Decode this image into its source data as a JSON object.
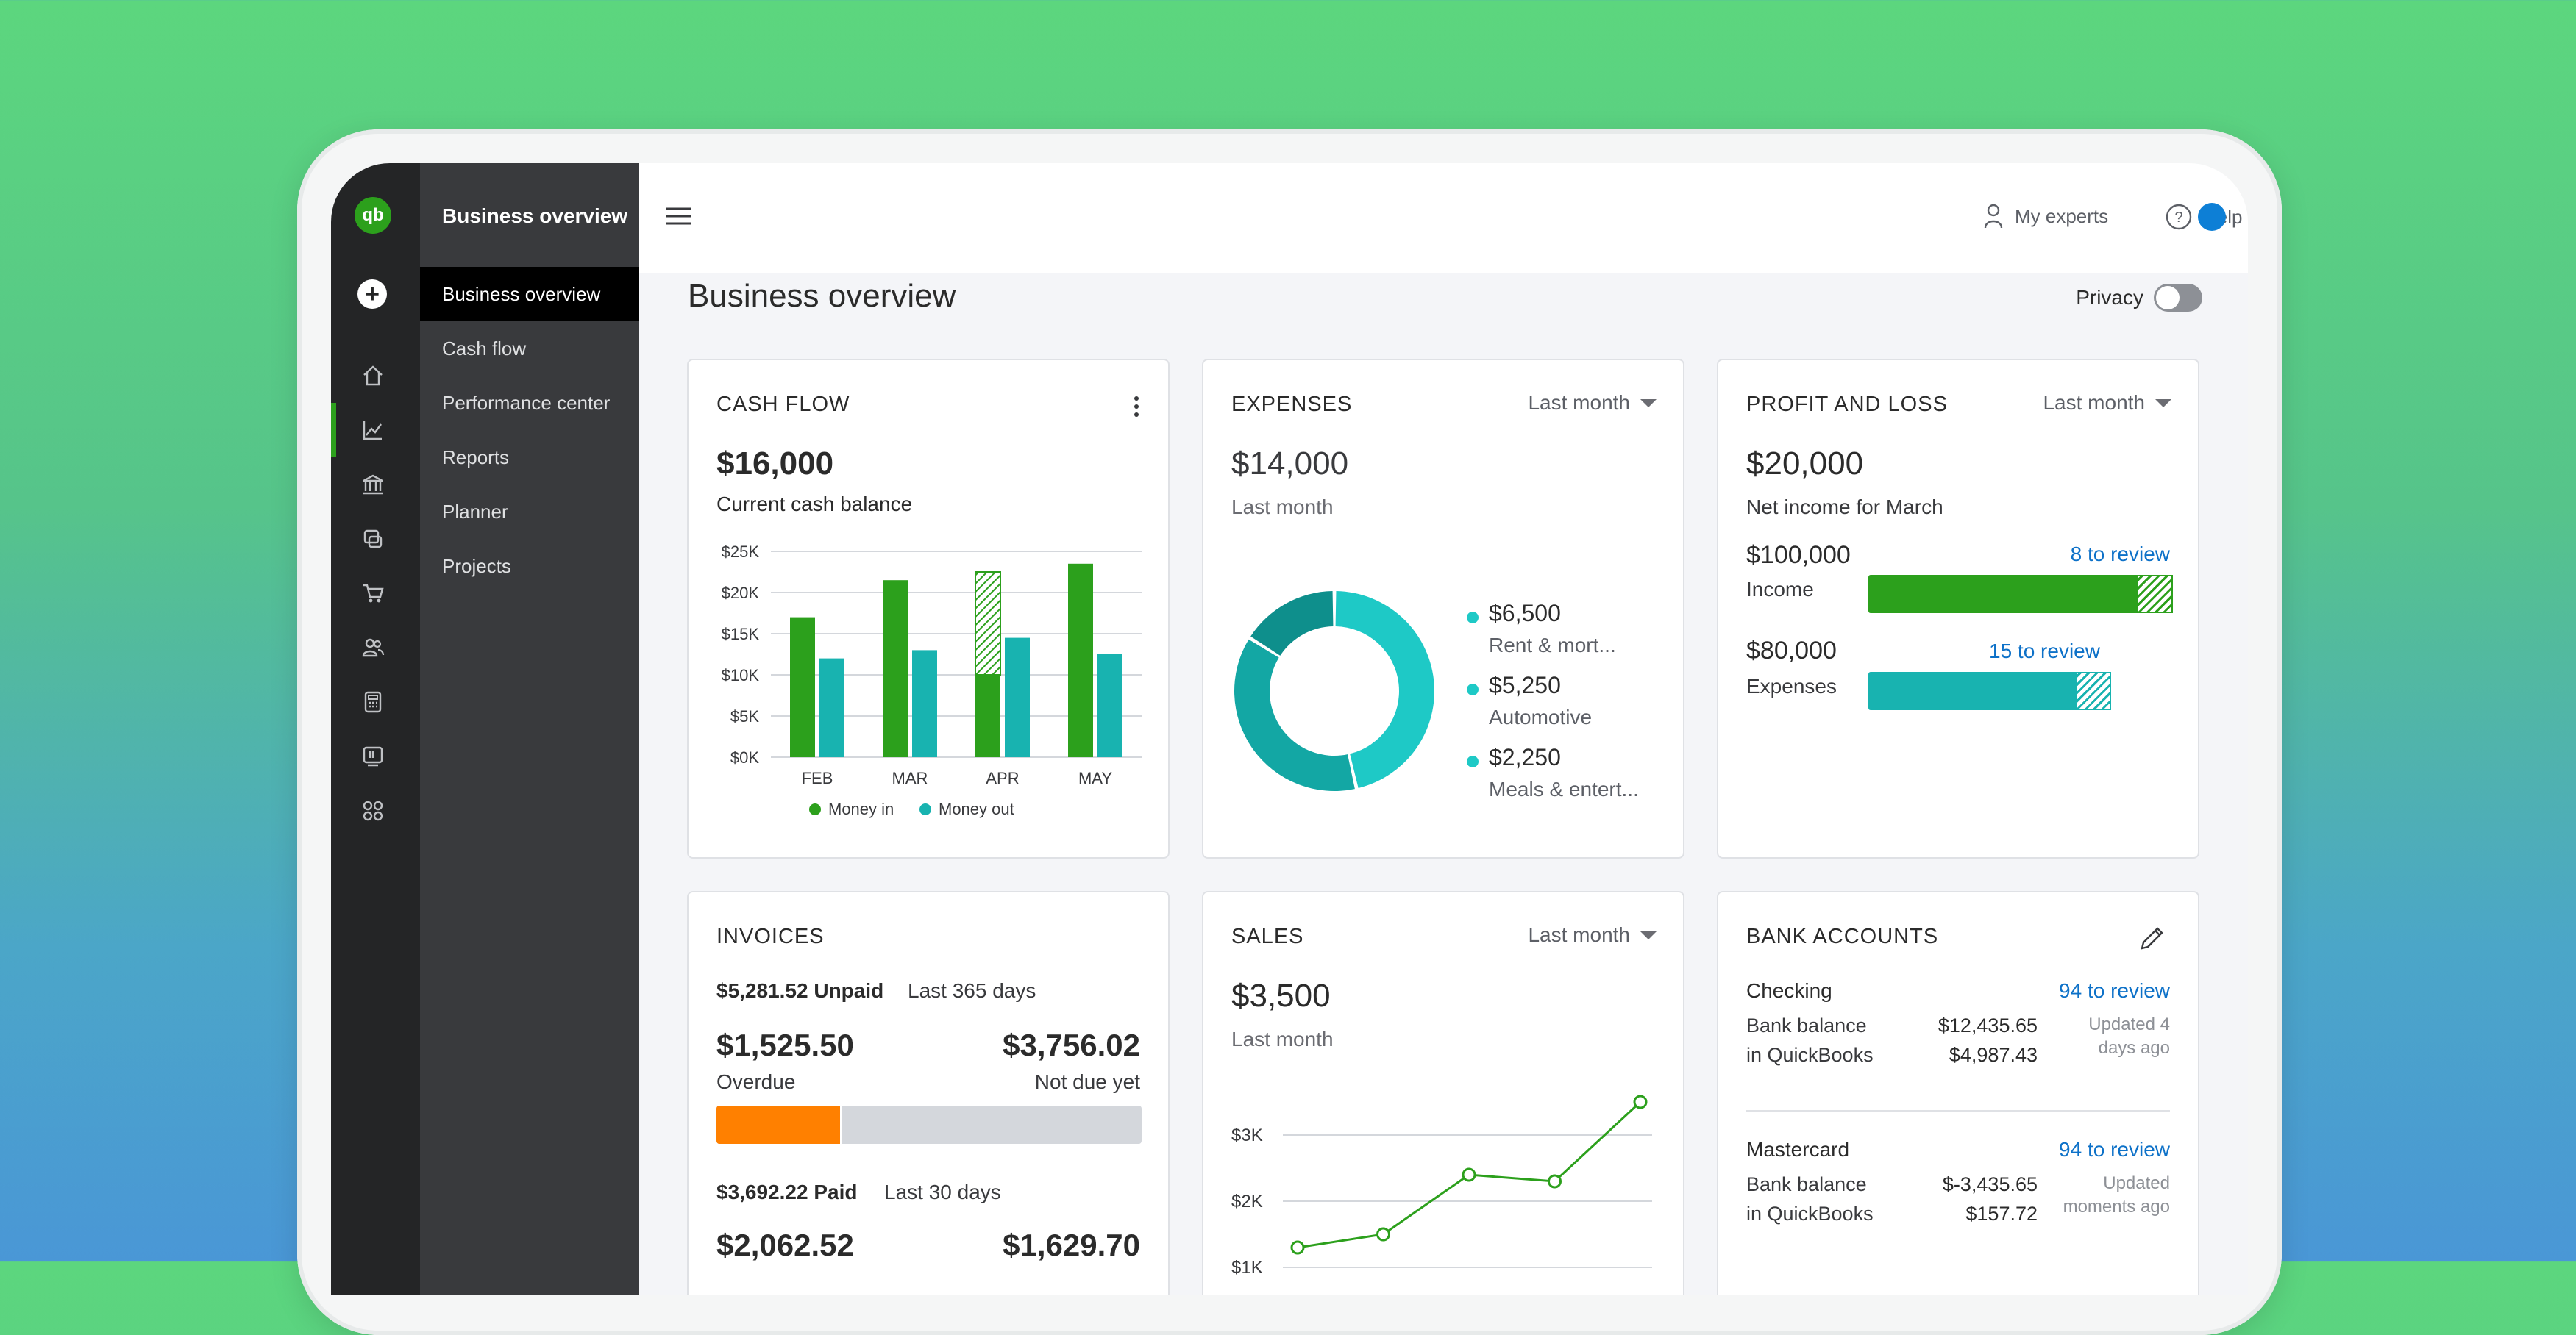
{
  "brand": {
    "logo_text": "qb",
    "accent": "#2ca01c",
    "teal": "#18b3b0",
    "link": "#0d71c8"
  },
  "nav": {
    "title": "Business overview",
    "items": [
      {
        "label": "Business overview",
        "active": true
      },
      {
        "label": "Cash flow"
      },
      {
        "label": "Performance center"
      },
      {
        "label": "Reports"
      },
      {
        "label": "Planner"
      },
      {
        "label": "Projects"
      }
    ]
  },
  "rail_icons": [
    "home-icon",
    "chart-icon",
    "bank-icon",
    "invoice-icon",
    "cart-icon",
    "people-icon",
    "calculator-icon",
    "tax-icon",
    "apps-icon"
  ],
  "topbar": {
    "my_experts": "My experts",
    "help": "Help"
  },
  "page": {
    "title": "Business overview",
    "privacy_label": "Privacy"
  },
  "cash_flow": {
    "title": "CASH FLOW",
    "amount": "$16,000",
    "subtitle": "Current cash balance",
    "legend_in": "Money in",
    "legend_out": "Money out"
  },
  "chart_data": {
    "type": "bar",
    "categories": [
      "FEB",
      "MAR",
      "APR",
      "MAY"
    ],
    "series": [
      {
        "name": "Money in",
        "values": [
          17,
          21.5,
          10,
          23.5
        ],
        "projected": [
          0,
          0,
          12.5,
          0
        ]
      },
      {
        "name": "Money out",
        "values": [
          12,
          13,
          14.5,
          12.5
        ]
      }
    ],
    "yticks": [
      "$0K",
      "$5K",
      "$10K",
      "$15K",
      "$20K",
      "$25K"
    ],
    "ylim": [
      0,
      25
    ],
    "grid": true,
    "legend": "bottom"
  },
  "expenses": {
    "title": "EXPENSES",
    "period": "Last month",
    "amount": "$14,000",
    "subtitle": "Last month",
    "items": [
      {
        "amount": "$6,500",
        "label": "Rent & mort...",
        "share": 6500
      },
      {
        "amount": "$5,250",
        "label": "Automotive",
        "share": 5250
      },
      {
        "amount": "$2,250",
        "label": "Meals & entert...",
        "share": 2250
      }
    ]
  },
  "profit_loss": {
    "title": "PROFIT AND LOSS",
    "period": "Last month",
    "amount": "$20,000",
    "subtitle": "Net income for March",
    "income": {
      "amount": "$100,000",
      "label": "Income",
      "review": "8 to review",
      "reviewed_fraction": 0.88
    },
    "expenses": {
      "amount": "$80,000",
      "label": "Expenses",
      "review": "15 to review",
      "reviewed_fraction": 0.85
    }
  },
  "invoices": {
    "title": "INVOICES",
    "unpaid_amount": "$5,281.52 Unpaid",
    "unpaid_period": "Last 365 days",
    "overdue_amount": "$1,525.50",
    "overdue_label": "Overdue",
    "not_due_amount": "$3,756.02",
    "not_due_label": "Not due yet",
    "overdue_fraction": 0.29,
    "paid_amount": "$3,692.22 Paid",
    "paid_period": "Last 30 days",
    "paid_left": "$2,062.52",
    "paid_right": "$1,629.70"
  },
  "sales": {
    "title": "SALES",
    "period": "Last month",
    "amount": "$3,500",
    "subtitle": "Last month",
    "yticks": [
      "$1K",
      "$2K",
      "$3K"
    ],
    "points": [
      1.3,
      1.5,
      2.4,
      2.3,
      3.5
    ]
  },
  "bank_accounts": {
    "title": "BANK ACCOUNTS",
    "accounts": [
      {
        "name": "Checking",
        "review": "94 to review",
        "label1": "Bank balance",
        "label2": "in QuickBooks",
        "bank_balance": "$12,435.65",
        "qb_balance": "$4,987.43",
        "updated1": "Updated 4",
        "updated2": "days ago"
      },
      {
        "name": "Mastercard",
        "review": "94 to review",
        "label1": "Bank balance",
        "label2": "in QuickBooks",
        "bank_balance": "$-3,435.65",
        "qb_balance": "$157.72",
        "updated1": "Updated",
        "updated2": "moments ago"
      }
    ]
  }
}
